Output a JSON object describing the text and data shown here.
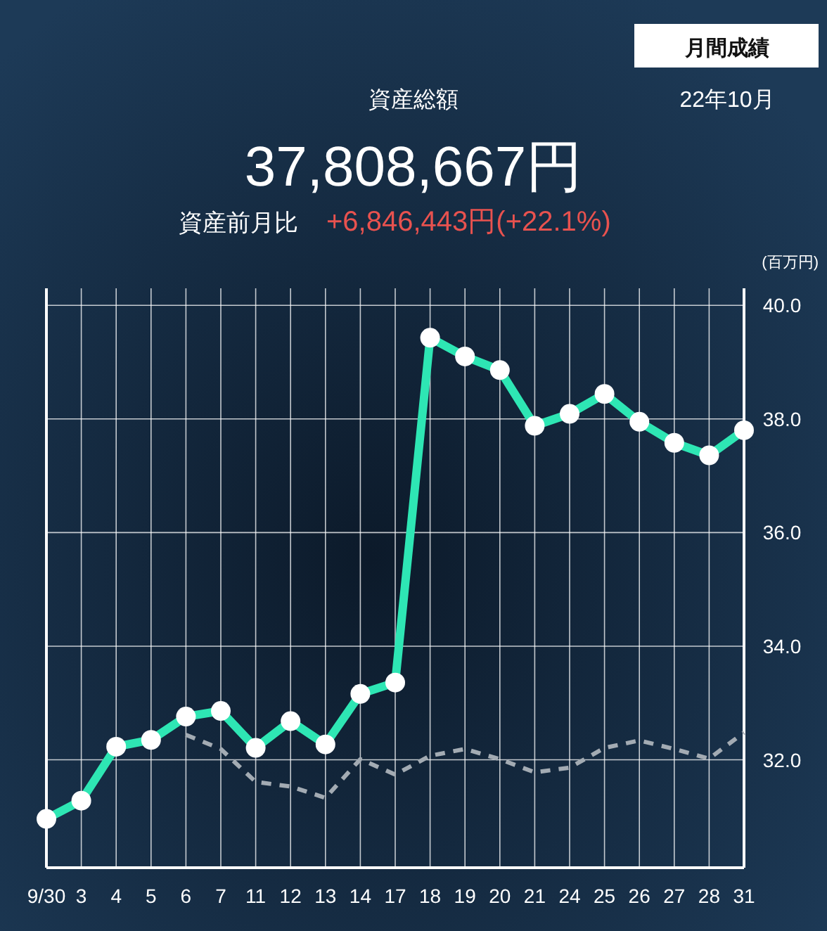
{
  "chart_data": {
    "type": "line",
    "title": "資産総額",
    "subtitle": "37,808,667円",
    "ylabel": "(百万円)",
    "annotations": [
      "資産前月比",
      "+6,846,443円(+22.1%)",
      "月間成績",
      "22年10月"
    ],
    "categories": [
      "9/30",
      "3",
      "4",
      "5",
      "6",
      "7",
      "11",
      "12",
      "13",
      "14",
      "17",
      "18",
      "19",
      "20",
      "21",
      "24",
      "25",
      "26",
      "27",
      "28",
      "31"
    ],
    "series": [
      {
        "color": "#2ee6b4",
        "marker": "circle",
        "line_style": "solid",
        "values": [
          30.96,
          31.28,
          32.23,
          32.35,
          32.76,
          32.86,
          32.21,
          32.68,
          32.27,
          33.16,
          33.36,
          39.43,
          39.1,
          38.86,
          37.88,
          38.09,
          38.44,
          37.95,
          37.58,
          37.36,
          37.8
        ]
      },
      {
        "color": "#a3abb3",
        "marker": "none",
        "line_style": "dashed",
        "values": [
          null,
          null,
          null,
          null,
          32.44,
          32.19,
          31.61,
          31.53,
          31.33,
          32.01,
          31.74,
          32.07,
          32.19,
          32.01,
          31.78,
          31.86,
          32.21,
          32.34,
          32.19,
          32.02,
          32.48
        ]
      }
    ],
    "ylim": [
      30.1,
      40.3
    ],
    "yticks": [
      {
        "value": 32,
        "label": "32.0"
      },
      {
        "value": 34,
        "label": "34.0"
      },
      {
        "value": 36,
        "label": "36.0"
      },
      {
        "value": 38,
        "label": "38.0"
      },
      {
        "value": 40,
        "label": "40.0"
      }
    ],
    "grid": true
  }
}
